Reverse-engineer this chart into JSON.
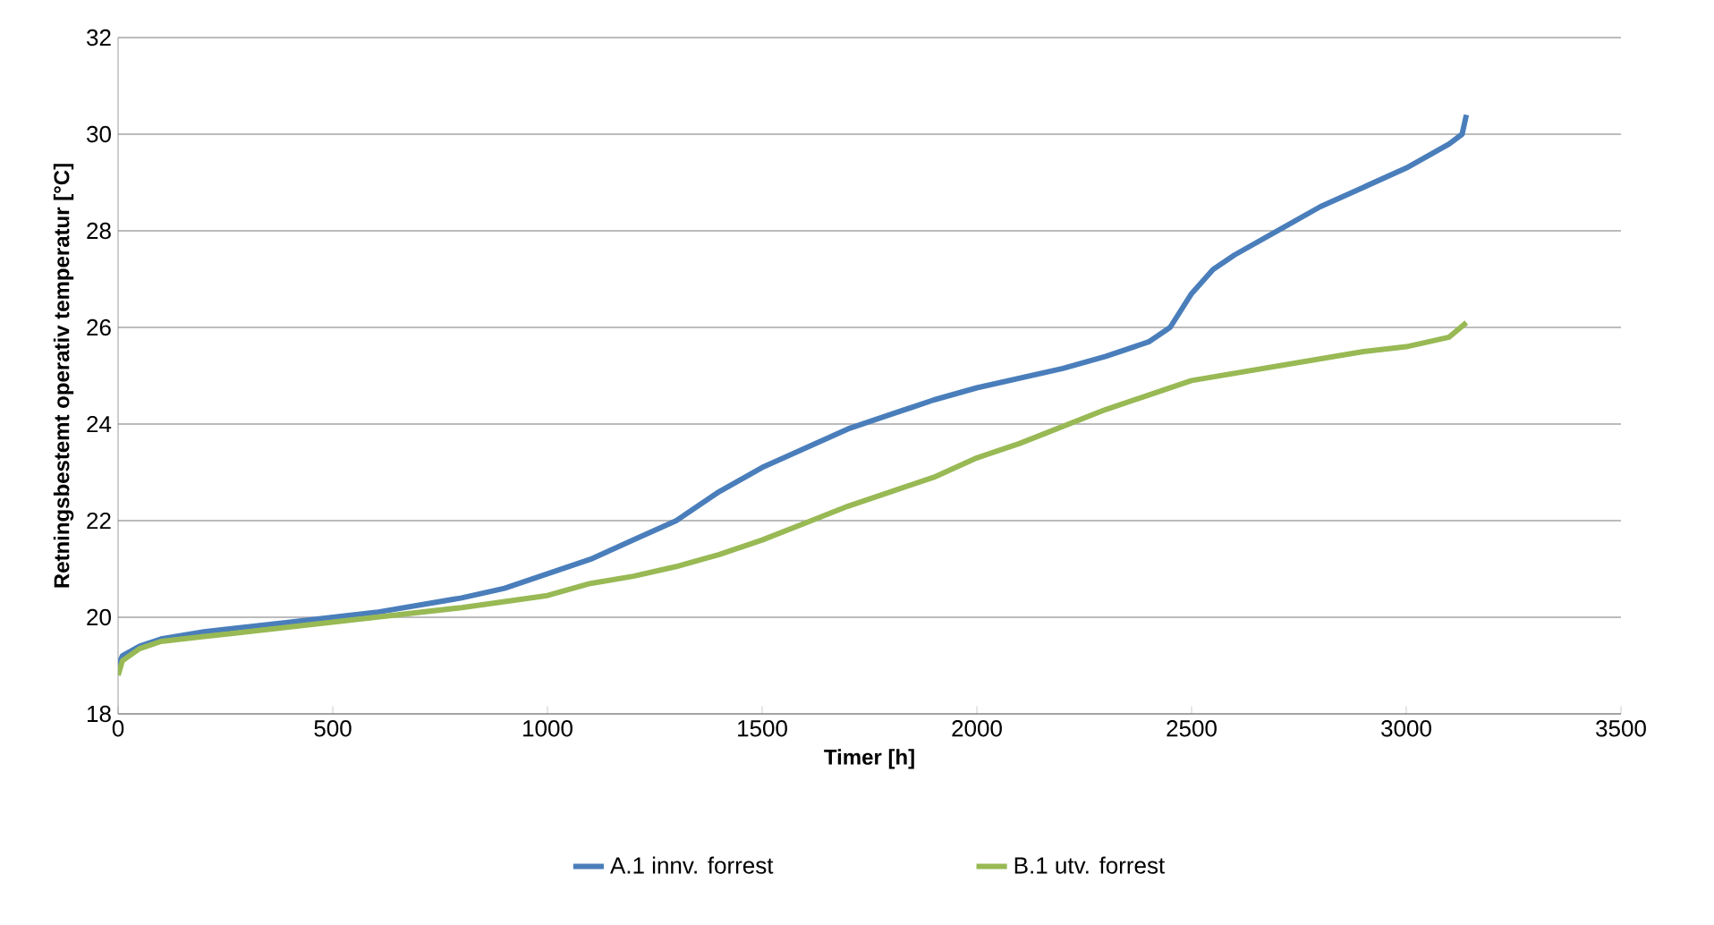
{
  "chart_data": {
    "type": "line",
    "xlabel": "Timer [h]",
    "ylabel": "Retningsbestemt operativ temperatur [°C]",
    "xlim": [
      0,
      3500
    ],
    "xticks": [
      0,
      500,
      1000,
      1500,
      2000,
      2500,
      3000,
      3500
    ],
    "ylim": [
      18,
      32
    ],
    "yticks": [
      18,
      20,
      22,
      24,
      26,
      28,
      30,
      32
    ],
    "grid": "y",
    "legend": "bottom",
    "marker": "none",
    "line_style": "solid",
    "series": [
      {
        "name": "A.1 innv. forrest",
        "color": "#4a7ebb",
        "x": [
          0,
          10,
          50,
          100,
          200,
          400,
          600,
          800,
          900,
          1000,
          1100,
          1200,
          1300,
          1400,
          1500,
          1600,
          1700,
          1800,
          1900,
          2000,
          2100,
          2200,
          2300,
          2400,
          2450,
          2500,
          2550,
          2600,
          2700,
          2800,
          2900,
          3000,
          3100,
          3130,
          3140
        ],
        "values": [
          19.0,
          19.2,
          19.4,
          19.55,
          19.7,
          19.9,
          20.1,
          20.4,
          20.6,
          20.9,
          21.2,
          21.6,
          22.0,
          22.6,
          23.1,
          23.5,
          23.9,
          24.2,
          24.5,
          24.75,
          24.95,
          25.15,
          25.4,
          25.7,
          26.0,
          26.7,
          27.2,
          27.5,
          28.0,
          28.5,
          28.9,
          29.3,
          29.8,
          30.0,
          30.4
        ]
      },
      {
        "name": "B.1 utv. forrest",
        "color": "#98b954",
        "x": [
          0,
          10,
          50,
          100,
          200,
          400,
          600,
          800,
          1000,
          1100,
          1200,
          1300,
          1400,
          1500,
          1600,
          1700,
          1800,
          1900,
          2000,
          2100,
          2200,
          2300,
          2400,
          2500,
          2600,
          2700,
          2800,
          2900,
          3000,
          3100,
          3140
        ],
        "values": [
          18.8,
          19.1,
          19.35,
          19.5,
          19.6,
          19.8,
          20.0,
          20.2,
          20.45,
          20.7,
          20.85,
          21.05,
          21.3,
          21.6,
          21.95,
          22.3,
          22.6,
          22.9,
          23.3,
          23.6,
          23.95,
          24.3,
          24.6,
          24.9,
          25.05,
          25.2,
          25.35,
          25.5,
          25.6,
          25.8,
          26.1
        ]
      }
    ]
  }
}
